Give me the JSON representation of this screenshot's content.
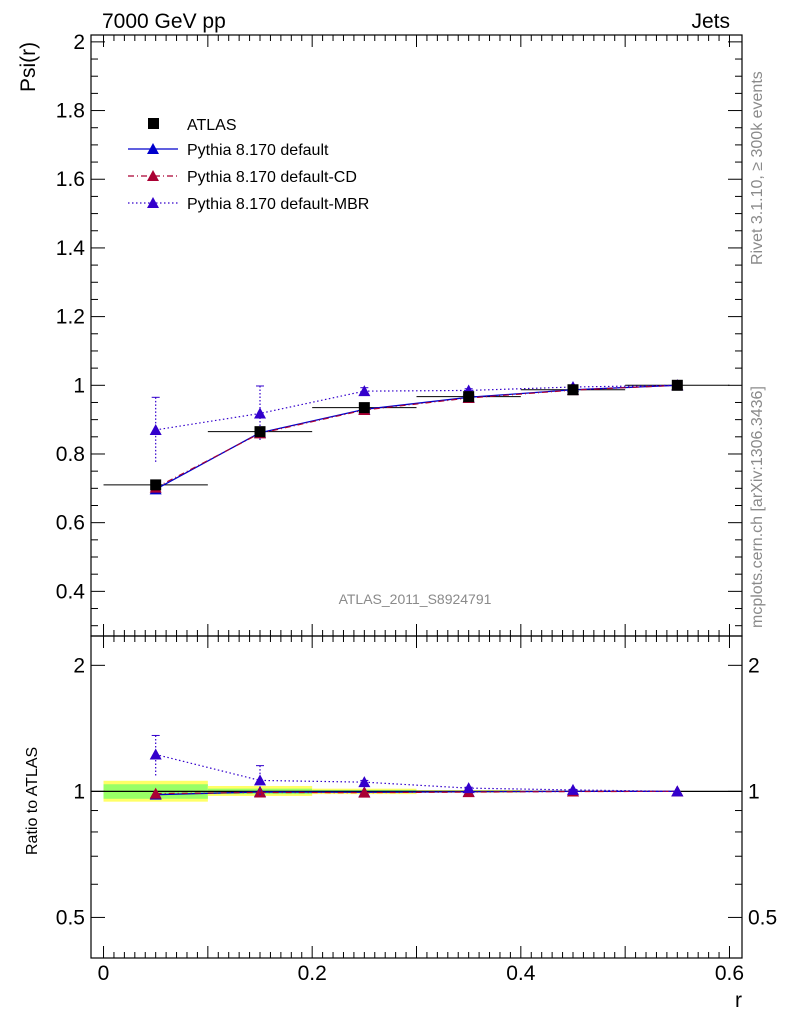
{
  "header": {
    "left": "7000 GeV pp",
    "right": "Jets"
  },
  "side_text": {
    "upper": "Rivet 3.1.10, ≥ 300k events",
    "lower": "mcplots.cern.ch [arXiv:1306.3436]"
  },
  "watermark": "ATLAS_2011_S8924791",
  "colors": {
    "atlas": "#000000",
    "default": "#0000cc",
    "cd": "#aa0033",
    "mbr": "#3300cc",
    "band_inner": "#99ff66",
    "band_outer": "#ffff66"
  },
  "chart_data": [
    {
      "type": "line",
      "panel": "main",
      "ylabel": "Psi(r)",
      "ylim": [
        0.27,
        2.02
      ],
      "yticks": [
        0.4,
        0.6,
        0.8,
        1,
        1.2,
        1.4,
        1.6,
        1.8,
        2
      ],
      "ytick_labels": [
        "0.4",
        "0.6",
        "0.8",
        "1",
        "1.2",
        "1.4",
        "1.6",
        "1.8",
        "2"
      ],
      "xlim": [
        -0.012,
        0.612
      ],
      "legend_position": "top-left",
      "series": [
        {
          "name": "ATLAS",
          "marker": "square",
          "x": [
            0.05,
            0.15,
            0.25,
            0.35,
            0.45,
            0.55
          ],
          "y": [
            0.71,
            0.865,
            0.935,
            0.967,
            0.987,
            1.0
          ],
          "xerr": 0.05
        },
        {
          "name": "Pythia 8.170 default",
          "marker": "triangle",
          "line": "solid",
          "x": [
            0.05,
            0.15,
            0.25,
            0.35,
            0.45,
            0.55
          ],
          "y": [
            0.697,
            0.862,
            0.93,
            0.965,
            0.987,
            1.0
          ]
        },
        {
          "name": "Pythia 8.170 default-CD",
          "marker": "triangle",
          "line": "dashdot",
          "x": [
            0.05,
            0.15,
            0.25,
            0.35,
            0.45,
            0.55
          ],
          "y": [
            0.702,
            0.86,
            0.928,
            0.963,
            0.986,
            1.0
          ]
        },
        {
          "name": "Pythia 8.170 default-MBR",
          "marker": "triangle",
          "line": "dotted",
          "x": [
            0.05,
            0.15,
            0.25,
            0.35,
            0.45,
            0.55
          ],
          "y": [
            0.87,
            0.918,
            0.983,
            0.985,
            0.995,
            1.0
          ],
          "yerr": [
            0.095,
            0.08,
            0.01,
            0.005,
            0.003,
            0.0
          ]
        }
      ]
    },
    {
      "type": "line",
      "panel": "ratio",
      "ylabel": "Ratio to ATLAS",
      "xlabel": "r",
      "yscale": "log",
      "ylim": [
        0.4,
        2.35
      ],
      "yticks": [
        0.5,
        1,
        2
      ],
      "ytick_labels": [
        "0.5",
        "1",
        "2"
      ],
      "xlim": [
        -0.012,
        0.612
      ],
      "xticks": [
        0,
        0.2,
        0.4,
        0.6
      ],
      "xtick_labels": [
        "0",
        "0.2",
        "0.4",
        "0.6"
      ],
      "bands": [
        {
          "x": [
            0.0,
            0.1
          ],
          "outer": [
            0.945,
            1.06
          ],
          "inner": [
            0.96,
            1.04
          ]
        },
        {
          "x": [
            0.1,
            0.2
          ],
          "outer": [
            0.975,
            1.03
          ],
          "inner": [
            0.985,
            1.015
          ]
        },
        {
          "x": [
            0.2,
            0.3
          ],
          "outer": [
            0.985,
            1.015
          ],
          "inner": [
            0.992,
            1.008
          ]
        },
        {
          "x": [
            0.3,
            0.4
          ],
          "outer": [
            0.993,
            1.007
          ],
          "inner": [
            0.996,
            1.004
          ]
        },
        {
          "x": [
            0.4,
            0.5
          ],
          "outer": [
            0.997,
            1.003
          ],
          "inner": [
            0.998,
            1.002
          ]
        },
        {
          "x": [
            0.5,
            0.6
          ],
          "outer": [
            0.999,
            1.001
          ],
          "inner": [
            0.9995,
            1.0005
          ]
        }
      ],
      "series": [
        {
          "name": "Pythia 8.170 default",
          "line": "solid",
          "x": [
            0.05,
            0.15,
            0.25,
            0.35,
            0.45,
            0.55
          ],
          "y": [
            0.982,
            0.997,
            0.995,
            0.998,
            1.0,
            1.0
          ]
        },
        {
          "name": "Pythia 8.170 default-CD",
          "line": "dashdot",
          "x": [
            0.05,
            0.15,
            0.25,
            0.35,
            0.45,
            0.55
          ],
          "y": [
            0.988,
            0.994,
            0.993,
            0.996,
            0.999,
            1.0
          ]
        },
        {
          "name": "Pythia 8.170 default-MBR",
          "line": "dotted",
          "x": [
            0.05,
            0.15,
            0.25,
            0.35,
            0.45,
            0.55
          ],
          "y": [
            1.225,
            1.062,
            1.052,
            1.018,
            1.008,
            1.0
          ],
          "yerr": [
            0.135,
            0.09,
            0.01,
            0.005,
            0.003,
            0.0
          ]
        }
      ]
    }
  ]
}
